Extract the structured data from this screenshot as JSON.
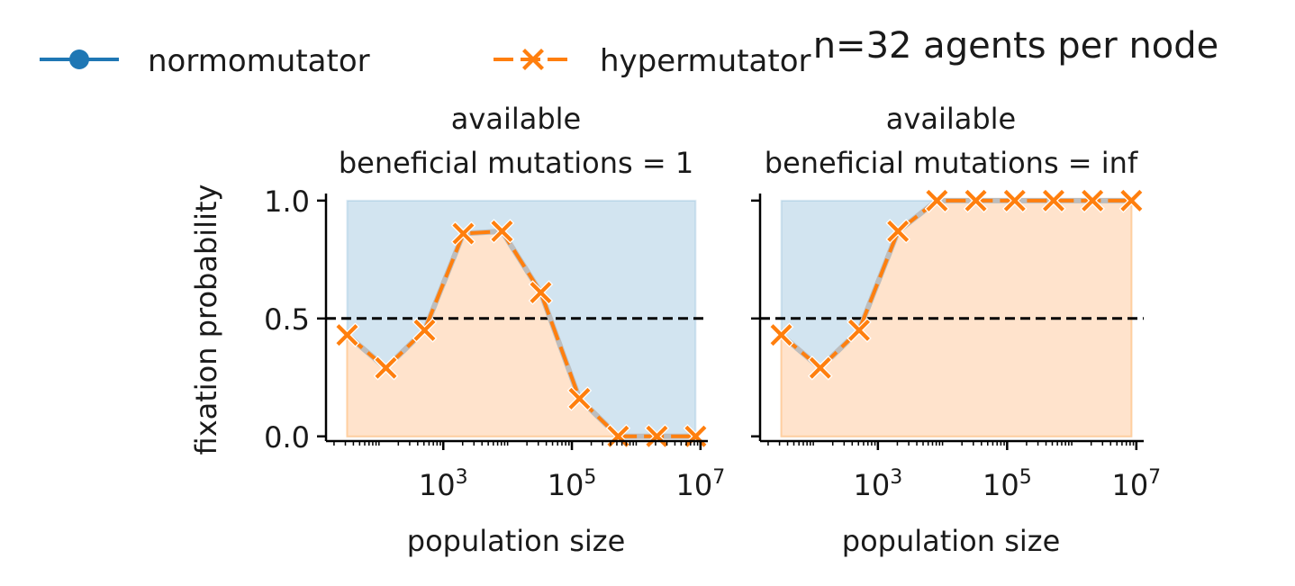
{
  "figure": {
    "suptitle": "n=32 agents per node",
    "ylabel": "fixation probability",
    "legend": [
      {
        "name": "normomutator",
        "color": "#1f77b4",
        "marker": "circle",
        "dash": "solid"
      },
      {
        "name": "hypermutator",
        "color": "#ff7f0e",
        "marker": "x",
        "dash": "dashed"
      }
    ]
  },
  "chart_data": [
    {
      "type": "line",
      "title_line1": "available",
      "title_line2": "beneficial mutations = 1",
      "xlabel": "population size",
      "xscale": "log",
      "xticks": [
        1000,
        100000,
        10000000
      ],
      "xtick_labels": [
        {
          "base": "10",
          "exp": "3"
        },
        {
          "base": "10",
          "exp": "5"
        },
        {
          "base": "10",
          "exp": "7"
        }
      ],
      "xlim": [
        15,
        13000000
      ],
      "ylim": [
        -0.02,
        1.03
      ],
      "yticks": [
        0.0,
        0.5,
        1.0
      ],
      "ytick_labels": [
        "0.0",
        "0.5",
        "1.0"
      ],
      "reference_line": 0.5,
      "x": [
        32,
        128,
        512,
        2048,
        8192,
        32768,
        131072,
        524288,
        2097152,
        8388608
      ],
      "series": [
        {
          "name": "hypermutator",
          "values": [
            0.43,
            0.29,
            0.45,
            0.86,
            0.87,
            0.61,
            0.16,
            0.0,
            0.0,
            0.0
          ]
        }
      ]
    },
    {
      "type": "line",
      "title_line1": "available",
      "title_line2": "beneficial mutations = inf",
      "xlabel": "population size",
      "xscale": "log",
      "xticks": [
        1000,
        100000,
        10000000
      ],
      "xtick_labels": [
        {
          "base": "10",
          "exp": "3"
        },
        {
          "base": "10",
          "exp": "5"
        },
        {
          "base": "10",
          "exp": "7"
        }
      ],
      "xlim": [
        15,
        13000000
      ],
      "ylim": [
        -0.02,
        1.03
      ],
      "yticks": [
        0.0,
        0.5,
        1.0
      ],
      "ytick_labels": [
        "",
        "",
        ""
      ],
      "reference_line": 0.5,
      "x": [
        32,
        128,
        512,
        2048,
        8192,
        32768,
        131072,
        524288,
        2097152,
        8388608
      ],
      "series": [
        {
          "name": "hypermutator",
          "values": [
            0.43,
            0.29,
            0.45,
            0.87,
            1.0,
            1.0,
            1.0,
            1.0,
            1.0,
            1.0
          ]
        }
      ]
    }
  ]
}
